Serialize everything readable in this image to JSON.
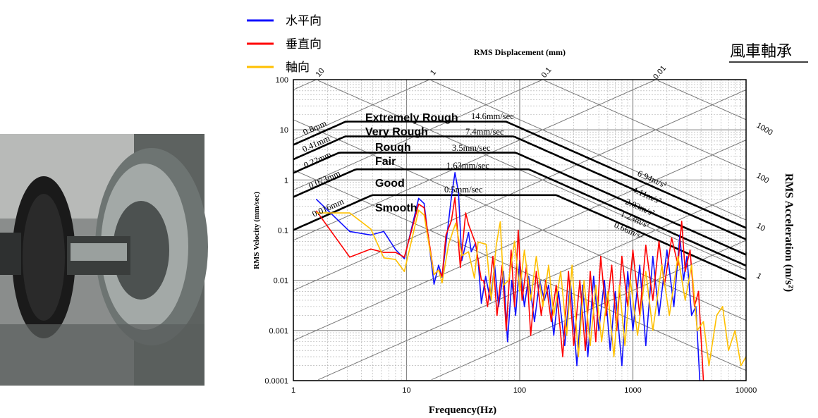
{
  "title": "風車軸承",
  "legend": [
    {
      "label": "水平向",
      "color": "#1010ff"
    },
    {
      "label": "垂直向",
      "color": "#ff0000"
    },
    {
      "label": "軸向",
      "color": "#ffc000"
    }
  ],
  "chart_data": {
    "type": "line",
    "xlabel": "Frequency(Hz)",
    "ylabel": "RMS Velocity (mm/sec)",
    "top_axis_label": "RMS Displacement (mm)",
    "right_axis_label": "RMS Acceleration (m/s²)",
    "xscale": "log",
    "yscale": "log",
    "xlim": [
      1,
      10000
    ],
    "ylim": [
      0.0001,
      100
    ],
    "x_ticks": [
      "1",
      "10",
      "100",
      "1000",
      "10000"
    ],
    "y_ticks": [
      "100",
      "10",
      "1",
      "0.1",
      "0.01",
      "0.001",
      "0.0001"
    ],
    "displacement_ticks": [
      "10",
      "1",
      "0.1",
      "0.01"
    ],
    "acceleration_ticks": [
      "1000",
      "100",
      "10",
      "1"
    ],
    "grid": true,
    "legend_placement": "top-left",
    "severity_zones": [
      {
        "name": "Extremely Rough",
        "displacement": "0.8mm",
        "velocity": "14.6mm/sec",
        "acceleration": "6.94m/s²",
        "d_mm": 0.8,
        "v_mms": 14.6,
        "a_ms2": 6.94
      },
      {
        "name": "Very Rough",
        "displacement": "0.41mm",
        "velocity": "7.4mm/sec",
        "acceleration": "4.11m/s²",
        "d_mm": 0.41,
        "v_mms": 7.4,
        "a_ms2": 4.11
      },
      {
        "name": "Rough",
        "displacement": "0.22mm",
        "velocity": "3.5mm/sec",
        "acceleration": "2.03m/s²",
        "d_mm": 0.22,
        "v_mms": 3.5,
        "a_ms2": 2.03
      },
      {
        "name": "Fair",
        "displacement": "0.073mm",
        "velocity": "1.63mm/sec",
        "acceleration": "1.23m/s²",
        "d_mm": 0.073,
        "v_mms": 1.63,
        "a_ms2": 1.23
      },
      {
        "name": "Good",
        "displacement": "0.016mm",
        "velocity": "0.5mm/sec",
        "acceleration": "0.66m/s²",
        "d_mm": 0.016,
        "v_mms": 0.5,
        "a_ms2": 0.66
      },
      {
        "name": "Smooth"
      }
    ],
    "series": [
      {
        "name": "水平向",
        "color": "#1010ff",
        "points": [
          [
            1.6,
            0.41
          ],
          [
            3.15,
            0.094
          ],
          [
            4.84,
            0.08
          ],
          [
            6.3,
            0.094
          ],
          [
            8.0,
            0.041
          ],
          [
            9.56,
            0.027
          ],
          [
            12.8,
            0.43
          ],
          [
            14.3,
            0.34
          ],
          [
            17.5,
            0.0084
          ],
          [
            19.2,
            0.02
          ],
          [
            20.6,
            0.0116
          ],
          [
            24.9,
            0.45
          ],
          [
            26.8,
            1.4
          ],
          [
            28.8,
            0.56
          ],
          [
            30.8,
            0.025
          ],
          [
            35.3,
            0.09
          ],
          [
            37.3,
            0.037
          ],
          [
            40.7,
            0.055
          ],
          [
            42.9,
            0.025
          ],
          [
            45.8,
            0.0035
          ],
          [
            50,
            0.012
          ],
          [
            55,
            0.004
          ],
          [
            60,
            0.02
          ],
          [
            65,
            0.003
          ],
          [
            72,
            0.015
          ],
          [
            78,
            0.0006
          ],
          [
            85,
            0.01
          ],
          [
            92,
            0.002
          ],
          [
            100,
            0.025
          ],
          [
            110,
            0.003
          ],
          [
            120,
            0.012
          ],
          [
            135,
            0.0015
          ],
          [
            150,
            0.01
          ],
          [
            165,
            0.004
          ],
          [
            180,
            0.008
          ],
          [
            200,
            0.0008
          ],
          [
            220,
            0.006
          ],
          [
            250,
            0.0005
          ],
          [
            280,
            0.01
          ],
          [
            320,
            0.0002
          ],
          [
            360,
            0.008
          ],
          [
            400,
            0.0003
          ],
          [
            450,
            0.012
          ],
          [
            500,
            0.001
          ],
          [
            560,
            0.01
          ],
          [
            630,
            0.0004
          ],
          [
            700,
            0.006
          ],
          [
            800,
            0.0002
          ],
          [
            900,
            0.015
          ],
          [
            1000,
            0.001
          ],
          [
            1150,
            0.02
          ],
          [
            1300,
            0.0005
          ],
          [
            1500,
            0.03
          ],
          [
            1700,
            0.002
          ],
          [
            2000,
            0.04
          ],
          [
            2300,
            0.003
          ],
          [
            2600,
            0.08
          ],
          [
            2800,
            0.01
          ],
          [
            3000,
            0.03
          ],
          [
            3300,
            0.002
          ],
          [
            3600,
            0.003
          ],
          [
            3900,
            0.0001
          ]
        ]
      },
      {
        "name": "垂直向",
        "color": "#ff0000",
        "points": [
          [
            1.6,
            0.24
          ],
          [
            3.15,
            0.029
          ],
          [
            4.84,
            0.042
          ],
          [
            6.3,
            0.036
          ],
          [
            8.0,
            0.036
          ],
          [
            9.56,
            0.029
          ],
          [
            12.8,
            0.33
          ],
          [
            14.3,
            0.28
          ],
          [
            17.5,
            0.013
          ],
          [
            19.2,
            0.016
          ],
          [
            20.6,
            0.012
          ],
          [
            22.3,
            0.08
          ],
          [
            24.9,
            0.154
          ],
          [
            26.8,
            0.45
          ],
          [
            29.9,
            0.018
          ],
          [
            33.3,
            0.22
          ],
          [
            35.3,
            0.13
          ],
          [
            40.7,
            0.055
          ],
          [
            45.8,
            0.01
          ],
          [
            48,
            0.01
          ],
          [
            52,
            0.003
          ],
          [
            58,
            0.03
          ],
          [
            63,
            0.002
          ],
          [
            70,
            0.02
          ],
          [
            76,
            0.001
          ],
          [
            84,
            0.04
          ],
          [
            90,
            0.003
          ],
          [
            97,
            0.1
          ],
          [
            105,
            0.004
          ],
          [
            115,
            0.02
          ],
          [
            125,
            0.0008
          ],
          [
            140,
            0.015
          ],
          [
            155,
            0.002
          ],
          [
            170,
            0.01
          ],
          [
            190,
            0.0015
          ],
          [
            210,
            0.008
          ],
          [
            240,
            0.0003
          ],
          [
            270,
            0.015
          ],
          [
            300,
            0.0005
          ],
          [
            340,
            0.01
          ],
          [
            380,
            0.0004
          ],
          [
            420,
            0.015
          ],
          [
            470,
            0.0006
          ],
          [
            520,
            0.03
          ],
          [
            580,
            0.002
          ],
          [
            650,
            0.02
          ],
          [
            720,
            0.001
          ],
          [
            800,
            0.03
          ],
          [
            900,
            0.003
          ],
          [
            1000,
            0.04
          ],
          [
            1150,
            0.002
          ],
          [
            1300,
            0.05
          ],
          [
            1500,
            0.004
          ],
          [
            1700,
            0.06
          ],
          [
            1900,
            0.008
          ],
          [
            2200,
            0.07
          ],
          [
            2500,
            0.02
          ],
          [
            2700,
            0.15
          ],
          [
            2900,
            0.015
          ],
          [
            3200,
            0.04
          ],
          [
            3500,
            0.003
          ],
          [
            3800,
            0.006
          ],
          [
            4200,
            0.0001
          ]
        ]
      },
      {
        "name": "軸向",
        "color": "#ffc000",
        "points": [
          [
            1.6,
            0.22
          ],
          [
            3.15,
            0.22
          ],
          [
            4.84,
            0.105
          ],
          [
            6.3,
            0.028
          ],
          [
            8.0,
            0.026
          ],
          [
            9.56,
            0.015
          ],
          [
            12.8,
            0.25
          ],
          [
            14.3,
            0.2
          ],
          [
            17.5,
            0.013
          ],
          [
            19.2,
            0.016
          ],
          [
            20.6,
            0.0089
          ],
          [
            23.5,
            0.052
          ],
          [
            27.2,
            0.138
          ],
          [
            30.8,
            0.031
          ],
          [
            35.3,
            0.037
          ],
          [
            39.8,
            0.011
          ],
          [
            42.9,
            0.058
          ],
          [
            50.6,
            0.052
          ],
          [
            56,
            0.004
          ],
          [
            62,
            0.05
          ],
          [
            67.3,
            0.146
          ],
          [
            72,
            0.008
          ],
          [
            80,
            0.01
          ],
          [
            90,
            0.06
          ],
          [
            100,
            0.006
          ],
          [
            110,
            0.04
          ],
          [
            125,
            0.004
          ],
          [
            140,
            0.03
          ],
          [
            160,
            0.003
          ],
          [
            180,
            0.02
          ],
          [
            200,
            0.002
          ],
          [
            230,
            0.015
          ],
          [
            260,
            0.0008
          ],
          [
            290,
            0.02
          ],
          [
            330,
            0.0003
          ],
          [
            370,
            0.01
          ],
          [
            420,
            0.0005
          ],
          [
            470,
            0.008
          ],
          [
            530,
            0.0006
          ],
          [
            600,
            0.006
          ],
          [
            680,
            0.0003
          ],
          [
            760,
            0.008
          ],
          [
            850,
            0.0005
          ],
          [
            950,
            0.01
          ],
          [
            1100,
            0.0008
          ],
          [
            1300,
            0.015
          ],
          [
            1500,
            0.001
          ],
          [
            1800,
            0.02
          ],
          [
            2100,
            0.002
          ],
          [
            2500,
            0.03
          ],
          [
            2900,
            0.004
          ],
          [
            3300,
            0.02
          ],
          [
            3700,
            0.001
          ],
          [
            4200,
            0.0015
          ],
          [
            4700,
            0.0002
          ],
          [
            5500,
            0.002
          ],
          [
            6200,
            0.003
          ],
          [
            7000,
            0.0004
          ],
          [
            8000,
            0.001
          ],
          [
            9000,
            0.0002
          ],
          [
            10000,
            0.0003
          ]
        ]
      }
    ]
  }
}
